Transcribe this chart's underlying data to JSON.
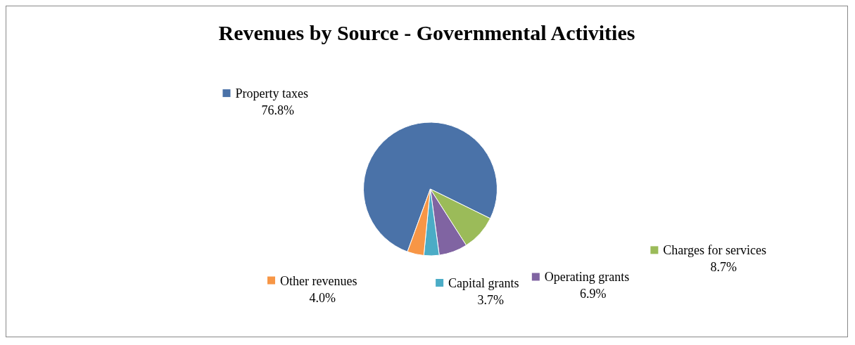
{
  "chart_data": {
    "type": "pie",
    "title": "Revenues by Source - Governmental Activities",
    "categories": [
      "Property taxes",
      "Charges for services",
      "Operating grants",
      "Capital grants",
      "Other revenues"
    ],
    "values": [
      76.8,
      8.7,
      6.9,
      3.7,
      4.0
    ],
    "value_labels": [
      "76.8%",
      "8.7%",
      "6.9%",
      "3.7%",
      "4.0%"
    ],
    "colors": [
      "#4a72a8",
      "#9bbb59",
      "#8064a2",
      "#4bacc6",
      "#f79646"
    ],
    "legend": "center"
  }
}
